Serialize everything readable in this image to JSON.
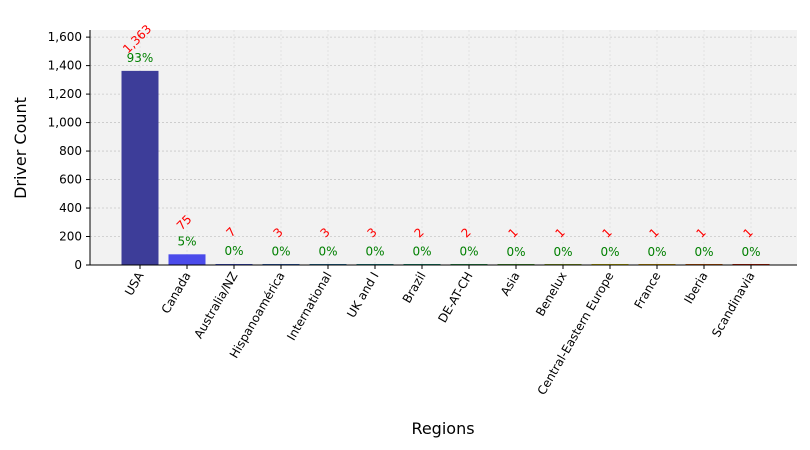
{
  "chart_data": {
    "type": "bar",
    "title": "",
    "xlabel": "Regions",
    "ylabel": "Driver Count",
    "ylim": [
      0,
      1650
    ],
    "yticks": [
      0,
      200,
      400,
      600,
      800,
      1000,
      1200,
      1400,
      1600
    ],
    "ytick_labels": [
      "0",
      "200",
      "400",
      "600",
      "800",
      "1,000",
      "1,200",
      "1,400",
      "1,600"
    ],
    "grid": true,
    "categories": [
      "USA",
      "Canada",
      "Australia/NZ",
      "Hispanoamérica",
      "International",
      "UK and I",
      "Brazil",
      "DE-AT-CH",
      "Asia",
      "Benelux",
      "Central-Eastern Europe",
      "France",
      "Iberia",
      "Scandinavia"
    ],
    "values": [
      1363,
      75,
      7,
      3,
      3,
      3,
      2,
      2,
      1,
      1,
      1,
      1,
      1,
      1
    ],
    "count_labels": [
      "1,363",
      "75",
      "7",
      "3",
      "3",
      "3",
      "2",
      "2",
      "1",
      "1",
      "1",
      "1",
      "1",
      "1"
    ],
    "percent_labels": [
      "93%",
      "5%",
      "0%",
      "0%",
      "0%",
      "0%",
      "0%",
      "0%",
      "0%",
      "0%",
      "0%",
      "0%",
      "0%",
      "0%"
    ],
    "colors": [
      "#3d3d99",
      "#4b4bea",
      "#3b4fd0",
      "#2e62b8",
      "#2474a0",
      "#1a8688",
      "#169070",
      "#2a9a50",
      "#4aa030",
      "#8aa620",
      "#c9b800",
      "#d8a000",
      "#d05a00",
      "#c82000"
    ]
  }
}
